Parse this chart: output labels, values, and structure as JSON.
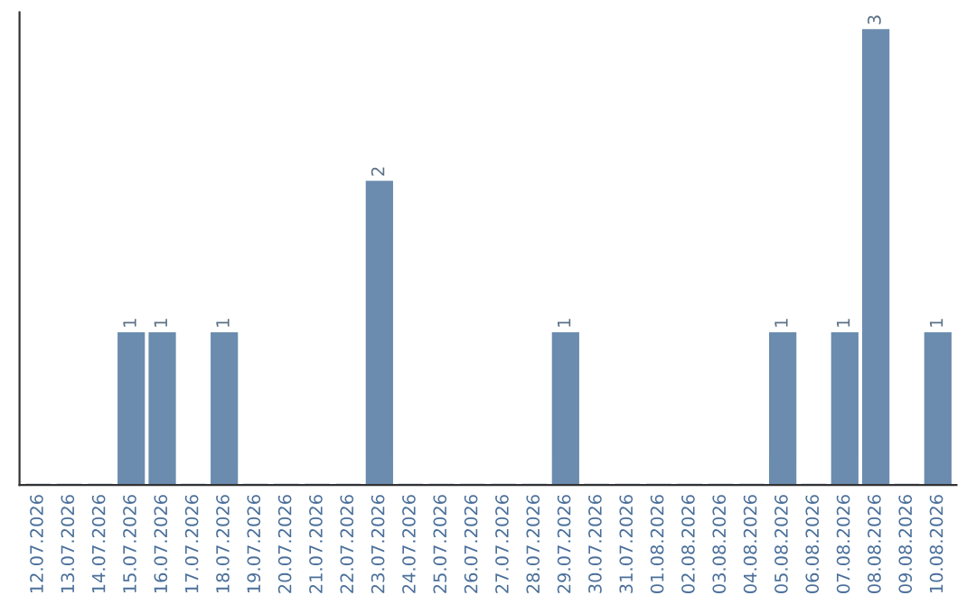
{
  "chart_data": {
    "type": "bar",
    "categories": [
      "12.07.2026",
      "13.07.2026",
      "14.07.2026",
      "15.07.2026",
      "16.07.2026",
      "17.07.2026",
      "18.07.2026",
      "19.07.2026",
      "20.07.2026",
      "21.07.2026",
      "22.07.2026",
      "23.07.2026",
      "24.07.2026",
      "25.07.2026",
      "26.07.2026",
      "27.07.2026",
      "28.07.2026",
      "29.07.2026",
      "30.07.2026",
      "31.07.2026",
      "01.08.2026",
      "02.08.2026",
      "03.08.2026",
      "04.08.2026",
      "05.08.2026",
      "06.08.2026",
      "07.08.2026",
      "08.08.2026",
      "09.08.2026",
      "10.08.2026"
    ],
    "values": [
      0,
      0,
      0,
      1,
      1,
      0,
      1,
      0,
      0,
      0,
      0,
      2,
      0,
      0,
      0,
      0,
      0,
      1,
      0,
      0,
      0,
      0,
      0,
      0,
      1,
      0,
      1,
      3,
      0,
      1
    ],
    "value_labels": [
      null,
      null,
      null,
      "1",
      "1",
      null,
      "1",
      null,
      null,
      null,
      null,
      "2",
      null,
      null,
      null,
      null,
      null,
      "1",
      null,
      null,
      null,
      null,
      null,
      null,
      "1",
      null,
      "1",
      "3",
      null,
      "1"
    ],
    "color": "#6b8cae",
    "tick_labels": "x",
    "grid": false
  }
}
